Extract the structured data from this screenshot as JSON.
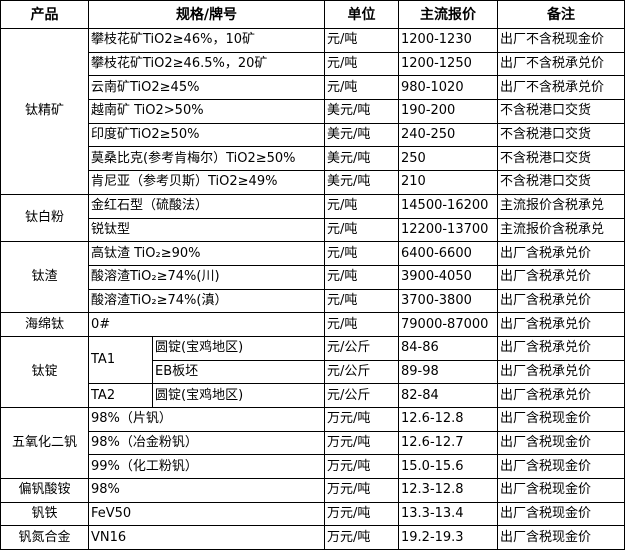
{
  "headers": {
    "product": "产品",
    "spec": "规格/牌号",
    "unit": "单位",
    "price": "主流报价",
    "note": "备注"
  },
  "groups": [
    {
      "product": "钛精矿",
      "rows": [
        {
          "spec": "攀枝花矿TiO2≥46%，10矿",
          "unit": "元/吨",
          "price": "1200-1230",
          "note": "出厂不含税现金价"
        },
        {
          "spec": "攀枝花矿TiO2≥46.5%，20矿",
          "unit": "元/吨",
          "price": "1200-1250",
          "note": "出厂不含税承兑价"
        },
        {
          "spec": "云南矿TiO2≥45%",
          "unit": "元/吨",
          "price": "980-1020",
          "note": "出厂不含税承兑价"
        },
        {
          "spec": "越南矿 TiO2>50%",
          "unit": "美元/吨",
          "price": "190-200",
          "note": "不含税港口交货"
        },
        {
          "spec": "印度矿TiO2≥50%",
          "unit": "美元/吨",
          "price": "240-250",
          "note": "不含税港口交货"
        },
        {
          "spec": "莫桑比克(参考肯梅尔）TiO2≥50%",
          "unit": "美元/吨",
          "price": "250",
          "note": "不含税港口交货"
        },
        {
          "spec": "肯尼亚（参考贝斯）TiO2≥49%",
          "unit": "美元/吨",
          "price": "210",
          "note": "不含税港口交货"
        }
      ]
    },
    {
      "product": "钛白粉",
      "rows": [
        {
          "spec": "金红石型（硫酸法）",
          "unit": "元/吨",
          "price": "14500-16200",
          "note": "主流报价含税承兑"
        },
        {
          "spec": "锐钛型",
          "unit": "元/吨",
          "price": "12200-13700",
          "note": "主流报价含税承兑"
        }
      ]
    },
    {
      "product": "钛渣",
      "rows": [
        {
          "spec": "高钛渣 TiO₂≥90%",
          "unit": "元/吨",
          "price": "6400-6600",
          "note": "出厂含税承兑价"
        },
        {
          "spec": "酸溶渣TiO₂≥74%(川)",
          "unit": "元/吨",
          "price": "3900-4050",
          "note": "出厂含税承兑价"
        },
        {
          "spec": "酸溶渣TiO₂≥74%(滇）",
          "unit": "元/吨",
          "price": "3700-3800",
          "note": "出厂含税承兑价"
        }
      ]
    },
    {
      "product": "海绵钛",
      "rows": [
        {
          "spec": "0#",
          "unit": "元/吨",
          "price": "79000-87000",
          "note": "出厂含税承兑价"
        }
      ]
    },
    {
      "product": "钛锭",
      "rows": [
        {
          "grade": "TA1",
          "grade_span": 2,
          "spec": "圆锭(宝鸡地区)",
          "unit": "元/公斤",
          "price": "84-86",
          "note": "出厂含税承兑价"
        },
        {
          "spec": "EB板坯",
          "unit": "元/公斤",
          "price": "89-98",
          "note": "出厂含税承兑价"
        },
        {
          "grade": "TA2",
          "grade_span": 1,
          "spec": "圆锭(宝鸡地区)",
          "unit": "元/公斤",
          "price": "82-84",
          "note": "出厂含税承兑价"
        }
      ]
    },
    {
      "product": "五氧化二钒",
      "rows": [
        {
          "spec": "98%（片钒）",
          "unit": "万元/吨",
          "price": "12.6-12.8",
          "note": "出厂含税现金价"
        },
        {
          "spec": "98%（冶金粉钒）",
          "unit": "万元/吨",
          "price": "12.6-12.7",
          "note": "出厂含税现金价"
        },
        {
          "spec": "99%（化工粉钒）",
          "unit": "万元/吨",
          "price": "15.0-15.6",
          "note": "出厂含税现金价"
        }
      ]
    },
    {
      "product": "偏钒酸铵",
      "rows": [
        {
          "spec": "98%",
          "unit": "万元/吨",
          "price": "12.3-12.8",
          "note": "出厂含税现金价"
        }
      ]
    },
    {
      "product": "钒铁",
      "rows": [
        {
          "spec": "FeV50",
          "unit": "万元/吨",
          "price": "13.3-13.4",
          "note": "出厂含税现金价"
        }
      ]
    },
    {
      "product": "钒氮合金",
      "rows": [
        {
          "spec": "VN16",
          "unit": "万元/吨",
          "price": "19.2-19.3",
          "note": "出厂含税现金价"
        }
      ]
    }
  ]
}
